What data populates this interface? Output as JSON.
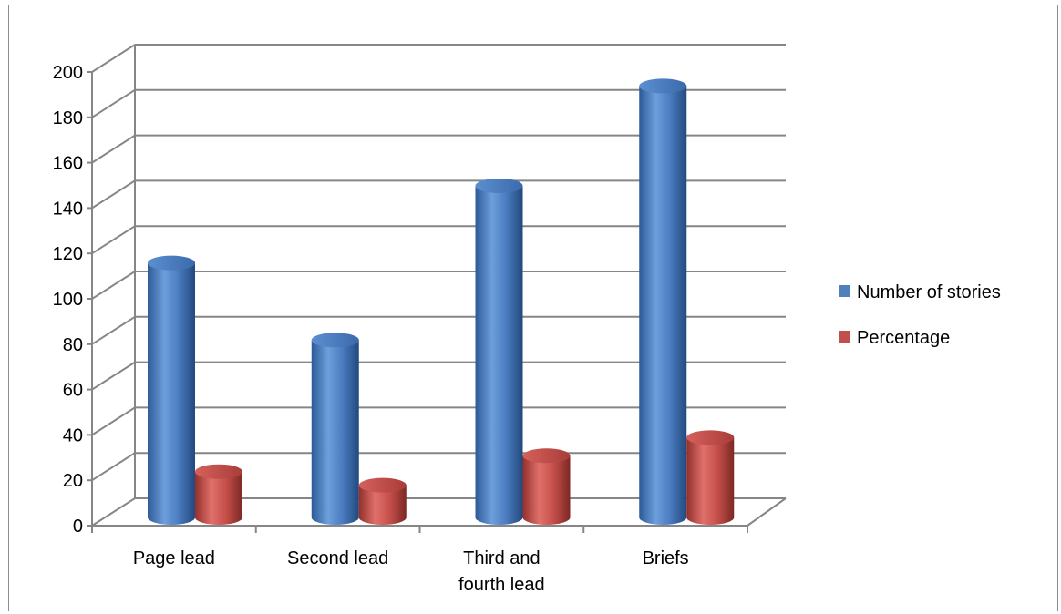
{
  "chart_data": {
    "type": "bar",
    "style": "3d-cylinder",
    "categories": [
      [
        "Page lead"
      ],
      [
        "Second lead"
      ],
      [
        "Third and",
        "fourth lead"
      ],
      [
        "Briefs"
      ]
    ],
    "series": [
      {
        "name": "Number of stories",
        "values": [
          111,
          77,
          145,
          189
        ],
        "color": "#4f81bd"
      },
      {
        "name": "Percentage",
        "values": [
          19,
          13,
          26,
          34
        ],
        "color": "#c0504d"
      }
    ],
    "ylim": [
      0,
      200
    ],
    "yticks": [
      0,
      20,
      40,
      60,
      80,
      100,
      120,
      140,
      160,
      180,
      200
    ],
    "grid": true,
    "legend_position": "right",
    "title": "",
    "xlabel": "",
    "ylabel": ""
  }
}
